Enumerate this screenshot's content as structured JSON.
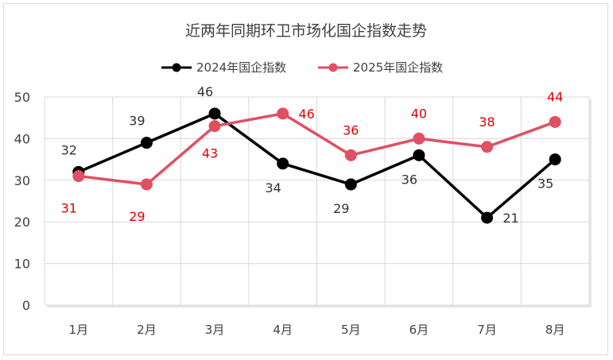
{
  "chart_data": {
    "type": "line",
    "title": "近两年同期环卫市场化国企指数走势",
    "categories": [
      "1月",
      "2月",
      "3月",
      "4月",
      "5月",
      "6月",
      "7月",
      "8月"
    ],
    "ylim": [
      0,
      50
    ],
    "yticks": [
      0,
      10,
      20,
      30,
      40,
      50
    ],
    "grid": true,
    "legend_position": "top",
    "series": [
      {
        "name": "2024年国企指数",
        "color": "#000000",
        "values": [
          32,
          39,
          46,
          34,
          29,
          36,
          21,
          35
        ],
        "label_color": "#333333"
      },
      {
        "name": "2025年国企指数",
        "color": "#e05062",
        "values": [
          31,
          29,
          43,
          46,
          36,
          40,
          38,
          44
        ],
        "label_color": "#e00000"
      }
    ]
  }
}
